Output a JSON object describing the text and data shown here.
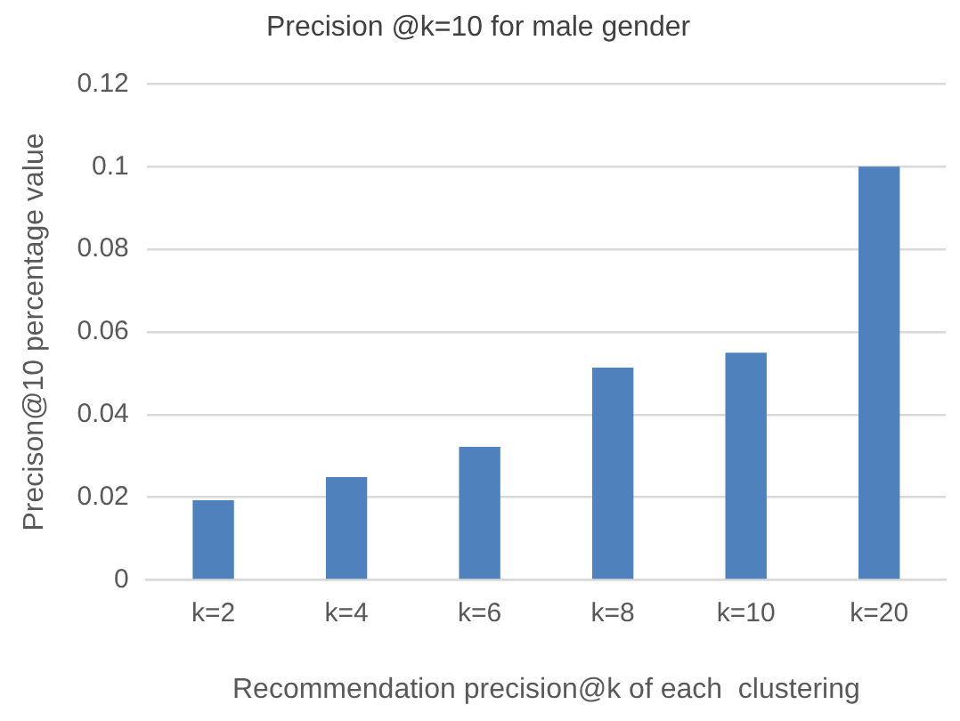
{
  "chart_data": {
    "type": "bar",
    "title": "Precision @k=10 for male gender",
    "xlabel": "Recommendation precision@k of each  clustering",
    "ylabel": "Precison@10 percentage value",
    "categories": [
      "k=2",
      "k=4",
      "k=6",
      "k=8",
      "k=10",
      "k=20"
    ],
    "values": [
      0.0193,
      0.0249,
      0.0322,
      0.0514,
      0.055,
      0.1
    ],
    "color": "#4f81bd",
    "ylim": [
      0,
      0.12
    ],
    "yticks": [
      0,
      0.02,
      0.04,
      0.06,
      0.08,
      0.1,
      0.12
    ],
    "grid": "y",
    "legend": false
  }
}
